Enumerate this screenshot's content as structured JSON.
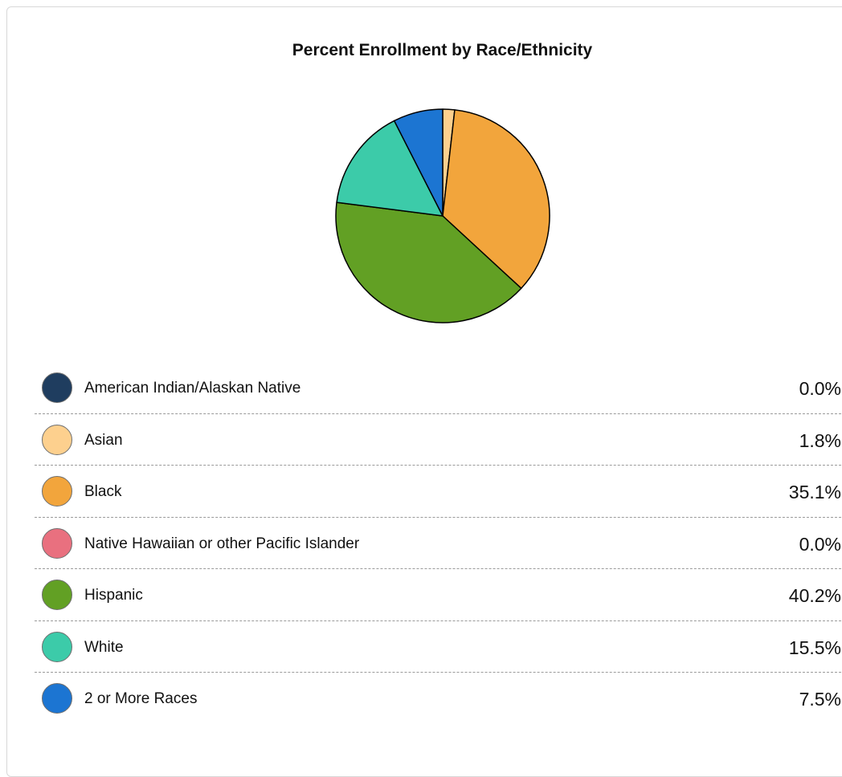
{
  "chart_data": {
    "type": "pie",
    "title": "Percent Enrollment by Race/Ethnicity",
    "categories": [
      "American Indian/Alaskan Native",
      "Asian",
      "Black",
      "Native Hawaiian or other Pacific Islander",
      "Hispanic",
      "White",
      "2 or More Races"
    ],
    "values": [
      0.0,
      1.8,
      35.1,
      0.0,
      40.2,
      15.5,
      7.5
    ],
    "value_labels": [
      "0.0%",
      "1.8%",
      "35.1%",
      "0.0%",
      "40.2%",
      "15.5%",
      "7.5%"
    ],
    "colors": [
      "#1f3d5f",
      "#fdd08e",
      "#f2a53c",
      "#e9707f",
      "#62a024",
      "#3ccba9",
      "#1c75d2"
    ],
    "start_angle_deg": 0,
    "direction": "clockwise",
    "slice_stroke": "#000000",
    "legend_position": "bottom"
  }
}
